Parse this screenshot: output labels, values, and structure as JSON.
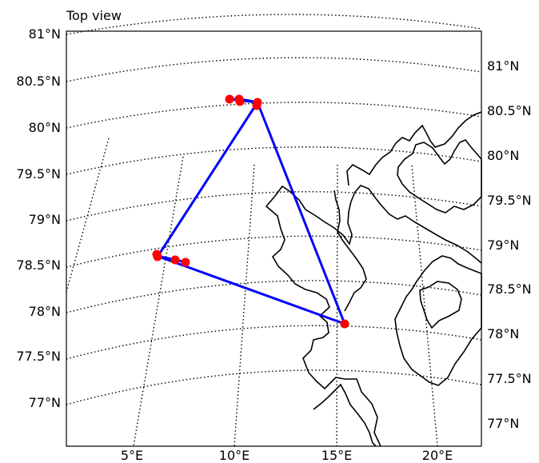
{
  "title": "Top view",
  "left_lat_labels": [
    "81°N",
    "80.5°N",
    "80°N",
    "79.5°N",
    "79°N",
    "78.5°N",
    "78°N",
    "77.5°N",
    "77°N"
  ],
  "right_lat_labels": [
    "81°N",
    "80.5°N",
    "80°N",
    "79.5°N",
    "79°N",
    "78.5°N",
    "78°N",
    "77.5°N",
    "77°N"
  ],
  "lon_labels": [
    "5°E",
    "10°E",
    "15°E",
    "20°E"
  ],
  "colors": {
    "track": "#0000ff",
    "points": "#ff0000",
    "coastline": "#000000",
    "gridlines": "#000000"
  },
  "map_features": [
    "meridians",
    "parallels",
    "coastline",
    "track-line",
    "track-points"
  ]
}
